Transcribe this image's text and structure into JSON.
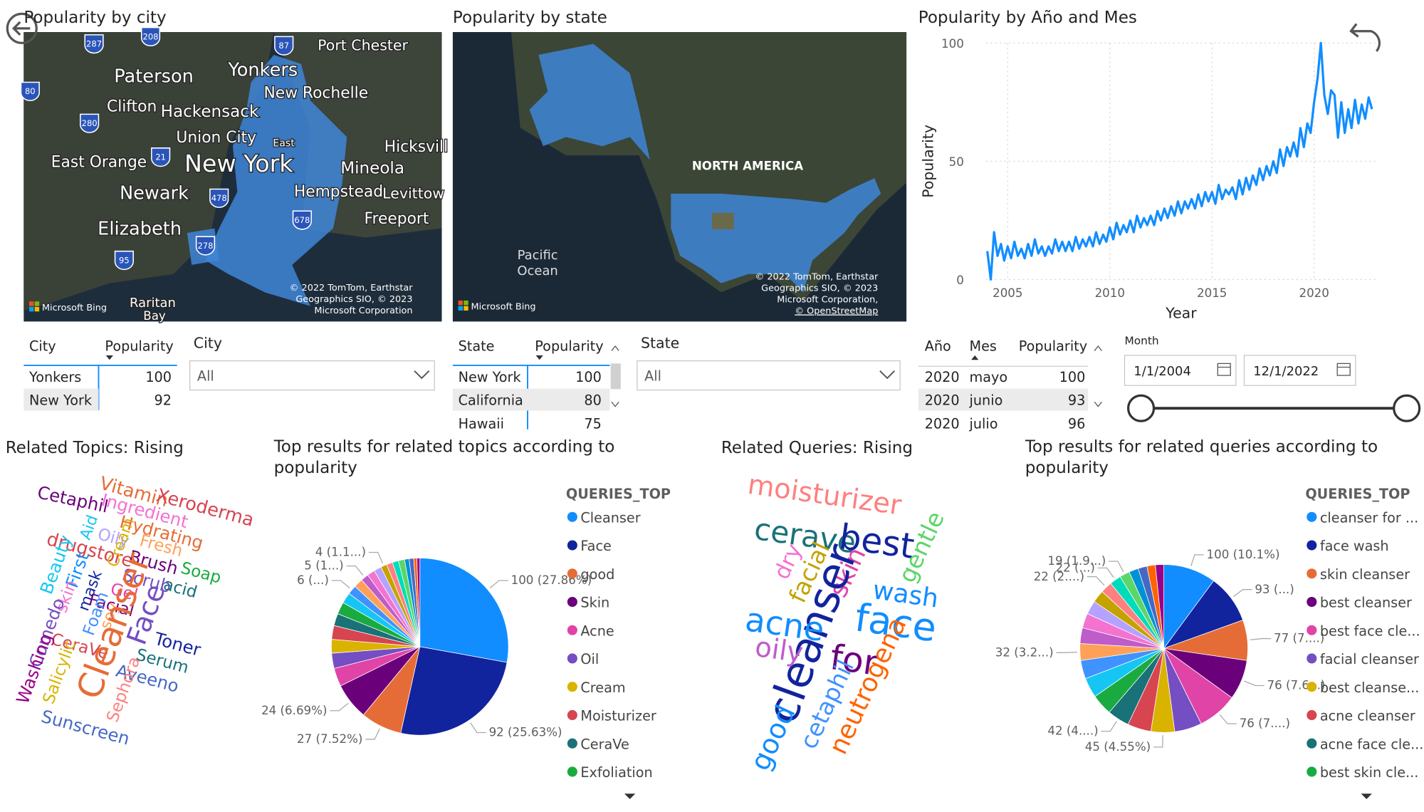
{
  "city_map": {
    "title": "Popularity by city",
    "places": [
      "Port Chester",
      "Paterson",
      "Yonkers",
      "New Rochelle",
      "Clifton",
      "Hackensack",
      "Union City",
      "East",
      "Hicksvill",
      "East Orange",
      "New York",
      "Mineola",
      "Newark",
      "Hempstead",
      "Levittow",
      "Freeport",
      "Elizabeth",
      "Raritan",
      "Bay"
    ],
    "shields": [
      "287",
      "208",
      "87",
      "80",
      "280",
      "21",
      "478",
      "678",
      "278",
      "95"
    ],
    "attribution": [
      "© 2022 TomTom, Earthstar",
      "Geographics SIO, © 2023",
      "Microsoft Corporation"
    ],
    "logo": "Microsoft Bing"
  },
  "state_map": {
    "title": "Popularity by state",
    "places": [
      "NORTH AMERICA",
      "Pacific",
      "Ocean"
    ],
    "attribution": [
      "© 2022 TomTom, Earthstar",
      "Geographics SIO, © 2023",
      "Microsoft Corporation,",
      "© OpenStreetMap"
    ],
    "logo": "Microsoft Bing"
  },
  "city_table": {
    "columns": [
      "City",
      "Popularity"
    ],
    "rows": [
      [
        "Yonkers",
        100
      ],
      [
        "New York",
        92
      ]
    ]
  },
  "city_slicer": {
    "label": "City",
    "value": "All"
  },
  "state_table": {
    "columns": [
      "State",
      "Popularity"
    ],
    "rows": [
      [
        "New York",
        100
      ],
      [
        "California",
        80
      ],
      [
        "Hawaii",
        75
      ]
    ]
  },
  "state_slicer": {
    "label": "State",
    "value": "All"
  },
  "month_table": {
    "columns": [
      "Año",
      "Mes",
      "Popularity"
    ],
    "rows": [
      [
        2020,
        "mayo",
        100
      ],
      [
        2020,
        "junio",
        93
      ],
      [
        2020,
        "julio",
        96
      ]
    ]
  },
  "date_slicer": {
    "label": "Month",
    "start": "1/1/2004",
    "end": "12/1/2022"
  },
  "topics_cloud": {
    "title": "Related Topics: Rising",
    "words": [
      {
        "text": "Vitamin",
        "color": "#E66C37"
      },
      {
        "text": "Xeroderma",
        "color": "#D64550"
      },
      {
        "text": "Cetaphil",
        "color": "#6B007B"
      },
      {
        "text": "Ingredient",
        "color": "#F472D0"
      },
      {
        "text": "Hydrating",
        "color": "#E66C37"
      },
      {
        "text": "Oily",
        "color": "#B5A1FF"
      },
      {
        "text": "Fresh",
        "color": "#FFA058"
      },
      {
        "text": "Aid",
        "color": "#15C6F4"
      },
      {
        "text": "drugstore",
        "color": "#D64550"
      },
      {
        "text": "Brush",
        "color": "#6B007B"
      },
      {
        "text": "Soap",
        "color": "#1AAB40"
      },
      {
        "text": "Scrub",
        "color": "#744EC2"
      },
      {
        "text": "acid",
        "color": "#197278"
      },
      {
        "text": "First",
        "color": "#118DFF"
      },
      {
        "text": "Beauty",
        "color": "#15C6F4"
      },
      {
        "text": "Cream",
        "color": "#D9B300"
      },
      {
        "text": "Gel",
        "color": "#E044A7"
      },
      {
        "text": "skin",
        "color": "#F472D0"
      },
      {
        "text": "mask",
        "color": "#12239E"
      },
      {
        "text": "Facial",
        "color": "#6B007B"
      },
      {
        "text": "Foam",
        "color": "#4092FF"
      },
      {
        "text": "soy",
        "color": "#FFA058"
      },
      {
        "text": "Face",
        "color": "#744EC2"
      },
      {
        "text": "Toner",
        "color": "#12239E"
      },
      {
        "text": "Serum",
        "color": "#197278"
      },
      {
        "text": "Comedo",
        "color": "#744EC2"
      },
      {
        "text": "CeraVe",
        "color": "#D64550"
      },
      {
        "text": "Cleanser",
        "color": "#E66C37"
      },
      {
        "text": "Washing",
        "color": "#99008A"
      },
      {
        "text": "Salicylic",
        "color": "#D9B300"
      },
      {
        "text": "Aveeno",
        "color": "#4668C5"
      },
      {
        "text": "Sephora",
        "color": "#FF8080"
      },
      {
        "text": "Sunscreen",
        "color": "#4668C5"
      }
    ]
  },
  "queries_cloud": {
    "title": "Related Queries: Rising",
    "words": [
      {
        "text": "moisturizer",
        "color": "#FF8080"
      },
      {
        "text": "cerave",
        "color": "#197278"
      },
      {
        "text": "best",
        "color": "#12239E"
      },
      {
        "text": "gentle",
        "color": "#5BD667"
      },
      {
        "text": "dry",
        "color": "#F472D0"
      },
      {
        "text": "facial",
        "color": "#C4A200"
      },
      {
        "text": "skin",
        "color": "#E044A7"
      },
      {
        "text": "wash",
        "color": "#118DFF"
      },
      {
        "text": "cleanser",
        "color": "#12239E"
      },
      {
        "text": "face",
        "color": "#118DFF"
      },
      {
        "text": "acne",
        "color": "#118DFF"
      },
      {
        "text": "oily",
        "color": "#BE5DC9"
      },
      {
        "text": "for",
        "color": "#6B007B"
      },
      {
        "text": "cetaphil",
        "color": "#4092FF"
      },
      {
        "text": "neutrogena",
        "color": "#FF6300"
      },
      {
        "text": "good",
        "color": "#118DFF"
      }
    ]
  },
  "chart_data": [
    {
      "type": "line",
      "title": "Popularity by Año and Mes",
      "xlabel": "Year",
      "ylabel": "Popularity",
      "color": "#118DFF",
      "x": [
        2004,
        2004.17,
        2004.33,
        2004.5,
        2004.67,
        2004.83,
        2005,
        2005.17,
        2005.33,
        2005.5,
        2005.67,
        2005.83,
        2006,
        2006.17,
        2006.33,
        2006.5,
        2006.67,
        2006.83,
        2007,
        2007.17,
        2007.33,
        2007.5,
        2007.67,
        2007.83,
        2008,
        2008.17,
        2008.33,
        2008.5,
        2008.67,
        2008.83,
        2009,
        2009.17,
        2009.33,
        2009.5,
        2009.67,
        2009.83,
        2010,
        2010.17,
        2010.33,
        2010.5,
        2010.67,
        2010.83,
        2011,
        2011.17,
        2011.33,
        2011.5,
        2011.67,
        2011.83,
        2012,
        2012.17,
        2012.33,
        2012.5,
        2012.67,
        2012.83,
        2013,
        2013.17,
        2013.33,
        2013.5,
        2013.67,
        2013.83,
        2014,
        2014.17,
        2014.33,
        2014.5,
        2014.67,
        2014.83,
        2015,
        2015.17,
        2015.33,
        2015.5,
        2015.67,
        2015.83,
        2016,
        2016.17,
        2016.33,
        2016.5,
        2016.67,
        2016.83,
        2017,
        2017.17,
        2017.33,
        2017.5,
        2017.67,
        2017.83,
        2018,
        2018.17,
        2018.33,
        2018.5,
        2018.67,
        2018.83,
        2019,
        2019.17,
        2019.33,
        2019.5,
        2019.67,
        2019.83,
        2020,
        2020.17,
        2020.33,
        2020.5,
        2020.67,
        2020.83,
        2021,
        2021.17,
        2021.33,
        2021.5,
        2021.67,
        2021.83,
        2022,
        2022.17,
        2022.33,
        2022.5,
        2022.67,
        2022.83
      ],
      "values": [
        12,
        0,
        20,
        10,
        15,
        8,
        14,
        9,
        16,
        10,
        13,
        9,
        15,
        10,
        17,
        11,
        14,
        10,
        14,
        11,
        17,
        12,
        16,
        12,
        16,
        12,
        18,
        13,
        17,
        14,
        18,
        14,
        20,
        15,
        19,
        16,
        22,
        17,
        24,
        19,
        23,
        20,
        25,
        20,
        27,
        22,
        26,
        23,
        27,
        23,
        29,
        25,
        30,
        26,
        31,
        27,
        33,
        28,
        33,
        30,
        34,
        30,
        36,
        31,
        37,
        33,
        37,
        32,
        40,
        34,
        38,
        36,
        39,
        34,
        42,
        36,
        43,
        38,
        44,
        40,
        47,
        42,
        48,
        44,
        50,
        45,
        55,
        48,
        56,
        52,
        58,
        52,
        64,
        56,
        66,
        62,
        75,
        85,
        100,
        78,
        70,
        80,
        78,
        60,
        75,
        62,
        72,
        64,
        76,
        66,
        74,
        68,
        77,
        72
      ],
      "xlim": [
        2003.93,
        2023.1
      ],
      "xticks": [
        2005,
        2010,
        2015,
        2020
      ],
      "ylim": [
        0,
        100
      ],
      "yticks": [
        0,
        50,
        100
      ],
      "grid": true
    },
    {
      "type": "pie",
      "title": "Top results for related topics according to popularity",
      "legend_title": "QUERIES_TOP",
      "categories": [
        "Cleanser",
        "Face",
        "good",
        "Skin",
        "Acne",
        "Oil",
        "Cream",
        "Moisturizer",
        "CeraVe",
        "Exfoliation",
        null,
        null,
        null,
        null,
        null,
        null,
        null,
        null,
        null,
        null,
        null,
        null,
        null,
        null
      ],
      "values": [
        100,
        92,
        27,
        24,
        12,
        10,
        9,
        9,
        8,
        8,
        7,
        6,
        6,
        5,
        5,
        5,
        4,
        4,
        4,
        4,
        3,
        3,
        2,
        2
      ],
      "value_labels": [
        "100 (27.86%)",
        "92 (25.63%)",
        "27 (7.52%)",
        "24 (6.69%)",
        null,
        null,
        null,
        null,
        null,
        null,
        null,
        "6 (...)",
        null,
        "5 (1...)",
        null,
        null,
        "4 (1.1...)",
        null,
        null,
        null,
        null,
        null,
        null,
        null
      ],
      "colors": [
        "#118DFF",
        "#12239E",
        "#E66C37",
        "#6B007B",
        "#E044A7",
        "#744EC2",
        "#D9B300",
        "#D64550",
        "#197278",
        "#1AAB40",
        "#15C6F4",
        "#4092FF",
        "#FFA058",
        "#BE5DC9",
        "#F472D0",
        "#B5A1FF",
        "#C4A200",
        "#FF8080",
        "#00DBBC",
        "#5BD667",
        "#0091D5",
        "#4668C5",
        "#FF6300",
        "#99008A"
      ]
    },
    {
      "type": "pie",
      "title": "Top results for related queries according to popularity",
      "legend_title": "QUERIES_TOP",
      "categories": [
        "cleanser for ...",
        "face wash",
        "skin cleanser",
        "best cleanser",
        "best face cle...",
        "facial cleanser",
        "best cleanse...",
        "acne cleanser",
        "acne face cle...",
        "best skin cle...",
        null,
        null,
        null,
        null,
        null,
        null,
        null,
        null,
        null,
        null,
        null,
        null,
        null,
        null
      ],
      "values": [
        100,
        93,
        77,
        76,
        76,
        52,
        45,
        45,
        42,
        40,
        38,
        35,
        32,
        30,
        28,
        26,
        24,
        22,
        22,
        19,
        18,
        17,
        16,
        16
      ],
      "value_labels": [
        "100 (10.1%)",
        "93 (...)",
        "77 (7....)",
        "76 (7.6...)",
        "76 (7....)",
        null,
        "45 (4.55%)",
        null,
        "42 (4....)",
        null,
        null,
        null,
        "32 (3.2...)",
        null,
        null,
        null,
        null,
        "22 (2....)",
        "22 (...)",
        "19 (1.9...)",
        null,
        null,
        null,
        null
      ],
      "colors": [
        "#118DFF",
        "#12239E",
        "#E66C37",
        "#6B007B",
        "#E044A7",
        "#744EC2",
        "#D9B300",
        "#D64550",
        "#197278",
        "#1AAB40",
        "#15C6F4",
        "#4092FF",
        "#FFA058",
        "#BE5DC9",
        "#F472D0",
        "#B5A1FF",
        "#C4A200",
        "#FF8080",
        "#00DBBC",
        "#5BD667",
        "#0091D5",
        "#4668C5",
        "#FF6300",
        "#99008A"
      ]
    }
  ]
}
